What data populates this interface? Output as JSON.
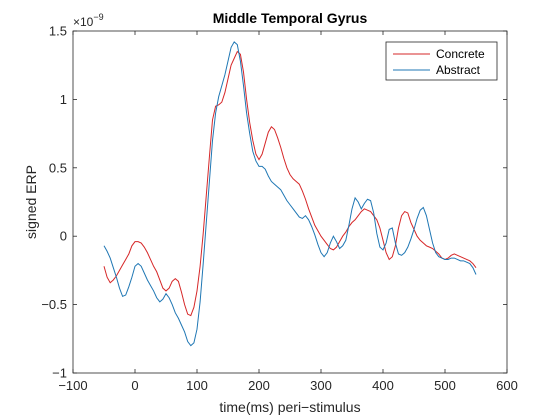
{
  "chart_data": {
    "type": "line",
    "title": "Middle Temporal Gyrus",
    "xlabel": "time(ms) peri−stimulus",
    "ylabel": "signed ERP",
    "xlim": [
      -100,
      600
    ],
    "ylim": [
      -1,
      1.5
    ],
    "y_exponent": "×10",
    "y_exponent_power": "−9",
    "xticks": [
      -100,
      0,
      100,
      200,
      300,
      400,
      500,
      600
    ],
    "xtick_labels": [
      "−100",
      "0",
      "100",
      "200",
      "300",
      "400",
      "500",
      "600"
    ],
    "yticks": [
      -1,
      -0.5,
      0,
      0.5,
      1,
      1.5
    ],
    "ytick_labels": [
      "−1",
      "−0.5",
      "0",
      "0.5",
      "1",
      "1.5"
    ],
    "grid": false,
    "legend_position": "top-right",
    "series": [
      {
        "name": "Concrete",
        "color": "#d62728",
        "x": [
          -50,
          -45,
          -40,
          -35,
          -30,
          -25,
          -20,
          -15,
          -10,
          -5,
          0,
          5,
          10,
          15,
          20,
          25,
          30,
          35,
          40,
          45,
          50,
          55,
          60,
          65,
          70,
          75,
          80,
          85,
          90,
          95,
          100,
          105,
          110,
          115,
          120,
          125,
          130,
          135,
          140,
          145,
          150,
          155,
          160,
          165,
          170,
          175,
          180,
          185,
          190,
          195,
          200,
          205,
          210,
          215,
          220,
          225,
          230,
          235,
          240,
          245,
          250,
          255,
          260,
          265,
          270,
          275,
          280,
          285,
          290,
          295,
          300,
          305,
          310,
          315,
          320,
          325,
          330,
          335,
          340,
          345,
          350,
          355,
          360,
          365,
          370,
          375,
          380,
          385,
          390,
          395,
          400,
          405,
          410,
          415,
          420,
          425,
          430,
          435,
          440,
          445,
          450,
          455,
          460,
          465,
          470,
          475,
          480,
          485,
          490,
          495,
          500,
          505,
          510,
          515,
          520,
          525,
          530,
          535,
          540,
          545,
          550
        ],
        "values": [
          -0.22,
          -0.3,
          -0.34,
          -0.32,
          -0.29,
          -0.25,
          -0.21,
          -0.17,
          -0.13,
          -0.07,
          -0.04,
          -0.04,
          -0.05,
          -0.08,
          -0.12,
          -0.17,
          -0.22,
          -0.26,
          -0.32,
          -0.38,
          -0.4,
          -0.38,
          -0.33,
          -0.31,
          -0.33,
          -0.41,
          -0.5,
          -0.57,
          -0.58,
          -0.52,
          -0.4,
          -0.22,
          0.02,
          0.3,
          0.58,
          0.85,
          0.95,
          0.96,
          0.98,
          1.05,
          1.15,
          1.25,
          1.3,
          1.35,
          1.33,
          1.2,
          1.0,
          0.83,
          0.7,
          0.6,
          0.56,
          0.6,
          0.68,
          0.76,
          0.8,
          0.78,
          0.72,
          0.65,
          0.57,
          0.5,
          0.45,
          0.42,
          0.4,
          0.38,
          0.33,
          0.27,
          0.2,
          0.14,
          0.08,
          0.04,
          0.0,
          -0.03,
          -0.06,
          -0.09,
          -0.1,
          -0.08,
          -0.04,
          0.0,
          0.03,
          0.07,
          0.1,
          0.12,
          0.15,
          0.18,
          0.2,
          0.19,
          0.18,
          0.15,
          0.12,
          0.06,
          -0.03,
          -0.12,
          -0.17,
          -0.15,
          -0.07,
          0.06,
          0.15,
          0.18,
          0.17,
          0.1,
          0.05,
          0.0,
          -0.03,
          -0.05,
          -0.07,
          -0.08,
          -0.09,
          -0.11,
          -0.13,
          -0.16,
          -0.17,
          -0.16,
          -0.14,
          -0.13,
          -0.14,
          -0.15,
          -0.16,
          -0.17,
          -0.18,
          -0.2,
          -0.23
        ]
      },
      {
        "name": "Abstract",
        "color": "#1f77b4",
        "x": [
          -50,
          -45,
          -40,
          -35,
          -30,
          -25,
          -20,
          -15,
          -10,
          -5,
          0,
          5,
          10,
          15,
          20,
          25,
          30,
          35,
          40,
          45,
          50,
          55,
          60,
          65,
          70,
          75,
          80,
          85,
          90,
          95,
          100,
          105,
          110,
          115,
          120,
          125,
          130,
          135,
          140,
          145,
          150,
          155,
          160,
          165,
          170,
          175,
          180,
          185,
          190,
          195,
          200,
          205,
          210,
          215,
          220,
          225,
          230,
          235,
          240,
          245,
          250,
          255,
          260,
          265,
          270,
          275,
          280,
          285,
          290,
          295,
          300,
          305,
          310,
          315,
          320,
          325,
          330,
          335,
          340,
          345,
          350,
          355,
          360,
          365,
          370,
          375,
          380,
          385,
          390,
          395,
          400,
          405,
          410,
          415,
          420,
          425,
          430,
          435,
          440,
          445,
          450,
          455,
          460,
          465,
          470,
          475,
          480,
          485,
          490,
          495,
          500,
          505,
          510,
          515,
          520,
          525,
          530,
          535,
          540,
          545,
          550
        ],
        "values": [
          -0.07,
          -0.11,
          -0.16,
          -0.23,
          -0.3,
          -0.38,
          -0.44,
          -0.43,
          -0.37,
          -0.3,
          -0.22,
          -0.2,
          -0.22,
          -0.27,
          -0.32,
          -0.36,
          -0.4,
          -0.45,
          -0.48,
          -0.46,
          -0.42,
          -0.45,
          -0.5,
          -0.56,
          -0.6,
          -0.65,
          -0.7,
          -0.77,
          -0.8,
          -0.78,
          -0.68,
          -0.48,
          -0.2,
          0.1,
          0.4,
          0.7,
          0.9,
          1.02,
          1.1,
          1.18,
          1.28,
          1.38,
          1.42,
          1.4,
          1.28,
          1.1,
          0.9,
          0.75,
          0.62,
          0.55,
          0.51,
          0.51,
          0.49,
          0.44,
          0.4,
          0.38,
          0.36,
          0.34,
          0.3,
          0.26,
          0.23,
          0.2,
          0.17,
          0.14,
          0.13,
          0.15,
          0.12,
          0.07,
          0.01,
          -0.06,
          -0.12,
          -0.15,
          -0.12,
          -0.05,
          0.0,
          -0.04,
          -0.09,
          -0.07,
          -0.03,
          0.08,
          0.2,
          0.28,
          0.25,
          0.2,
          0.24,
          0.27,
          0.26,
          0.17,
          0.02,
          -0.08,
          -0.1,
          -0.05,
          0.05,
          0.06,
          -0.05,
          -0.13,
          -0.14,
          -0.12,
          -0.08,
          -0.02,
          0.05,
          0.13,
          0.19,
          0.21,
          0.15,
          0.05,
          -0.05,
          -0.12,
          -0.15,
          -0.16,
          -0.17,
          -0.17,
          -0.16,
          -0.16,
          -0.17,
          -0.18,
          -0.18,
          -0.19,
          -0.2,
          -0.23,
          -0.28
        ]
      }
    ]
  }
}
